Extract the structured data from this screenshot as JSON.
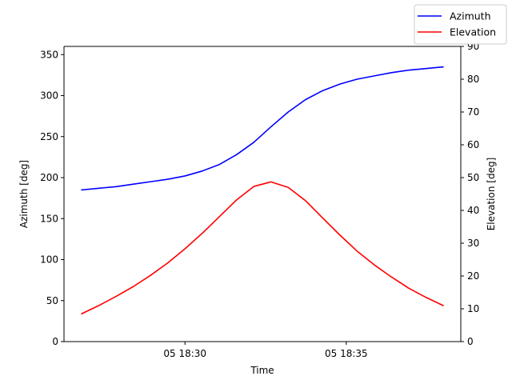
{
  "chart_data": {
    "type": "line",
    "xlabel": "Time",
    "x_ticks": [
      "05 18:30",
      "05 18:35"
    ],
    "ylabel_left": "Azimuth [deg]",
    "ylabel_right": "Elevation [deg]",
    "ylim_left": [
      0,
      360
    ],
    "ylim_right": [
      0,
      90
    ],
    "yticks_left": [
      0,
      50,
      100,
      150,
      200,
      250,
      300,
      350
    ],
    "yticks_right": [
      0,
      10,
      20,
      30,
      40,
      50,
      60,
      70,
      80,
      90
    ],
    "x_range_minutes_after_1830": [
      -3.75,
      8.55
    ],
    "x_tick_minutes_after_1830": [
      0,
      5
    ],
    "legend_position": "top-right",
    "grid": false,
    "series": [
      {
        "name": "Azimuth",
        "axis": "left",
        "color": "#0000ff",
        "x": [
          -3.2,
          -2.667,
          -2.133,
          -1.6,
          -1.067,
          -0.533,
          0,
          0.533,
          1.067,
          1.6,
          2.133,
          2.667,
          3.2,
          3.733,
          4.267,
          4.8,
          5.333,
          5.867,
          6.4,
          6.933,
          7.467,
          8.0
        ],
        "values": [
          185,
          187,
          189,
          192,
          195,
          198,
          202,
          208,
          216,
          228,
          243,
          262,
          280,
          295,
          306,
          314,
          320,
          324,
          328,
          331,
          333,
          335
        ]
      },
      {
        "name": "Elevation",
        "axis": "right",
        "color": "#ff0000",
        "x": [
          -3.2,
          -2.667,
          -2.133,
          -1.6,
          -1.067,
          -0.533,
          0,
          0.533,
          1.067,
          1.6,
          2.133,
          2.667,
          3.2,
          3.733,
          4.267,
          4.8,
          5.333,
          5.867,
          6.4,
          6.933,
          7.467,
          8.0
        ],
        "values": [
          8.5,
          11.0,
          13.8,
          16.8,
          20.2,
          24.0,
          28.3,
          33.0,
          38.1,
          43.2,
          47.3,
          48.7,
          47.0,
          43.0,
          37.7,
          32.5,
          27.6,
          23.4,
          19.7,
          16.3,
          13.5,
          11.0
        ]
      }
    ]
  }
}
